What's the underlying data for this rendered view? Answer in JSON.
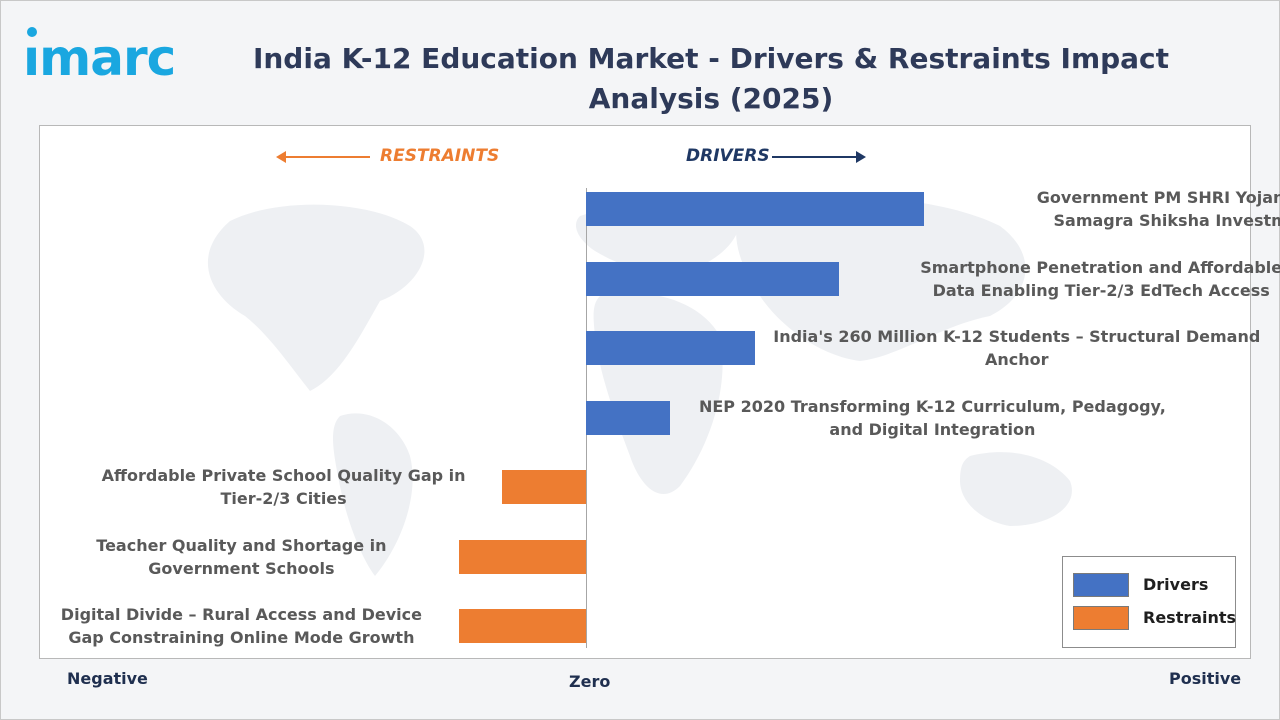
{
  "brand": {
    "logo_text": "imarc",
    "color": "#1aa7e0"
  },
  "title": "India K-12 Education Market - Drivers & Restraints Impact Analysis (2025)",
  "direction_labels": {
    "restraints": "RESTRAINTS",
    "drivers": "DRIVERS"
  },
  "axis_labels": {
    "negative": "Negative",
    "zero": "Zero",
    "positive": "Positive"
  },
  "legend": [
    {
      "name": "Drivers",
      "color": "#4472c4"
    },
    {
      "name": "Restraints",
      "color": "#ed7d31"
    }
  ],
  "chart_data": {
    "type": "bar",
    "orientation": "horizontal",
    "title": "India K-12 Education Market - Drivers & Restraints Impact Analysis (2025)",
    "xlabel": "",
    "ylabel": "",
    "xlim": [
      -2.2,
      2.2
    ],
    "grid": false,
    "legend_position": "bottom-right",
    "categories": [
      [
        "Government PM SHRI Yojana and",
        "Samagra Shiksha Investment"
      ],
      [
        "Smartphone Penetration and Affordable",
        "Data Enabling Tier-2/3 EdTech Access"
      ],
      [
        "India's 260 Million K-12 Students – Structural Demand",
        "Anchor"
      ],
      [
        "NEP 2020 Transforming K-12 Curriculum, Pedagogy,",
        "and Digital Integration"
      ],
      [
        "Affordable Private School Quality Gap in",
        "Tier-2/3 Cities"
      ],
      [
        "Teacher Quality and Shortage in",
        "Government Schools"
      ],
      [
        "Digital Divide – Rural Access and Device",
        "Gap Constraining Online Mode Growth"
      ]
    ],
    "series": [
      {
        "name": "Drivers",
        "color": "#4472c4",
        "values": [
          1.6,
          1.2,
          0.8,
          0.4,
          null,
          null,
          null
        ]
      },
      {
        "name": "Restraints",
        "color": "#ed7d31",
        "values": [
          null,
          null,
          null,
          null,
          -0.4,
          -0.6,
          -0.6
        ]
      }
    ]
  }
}
